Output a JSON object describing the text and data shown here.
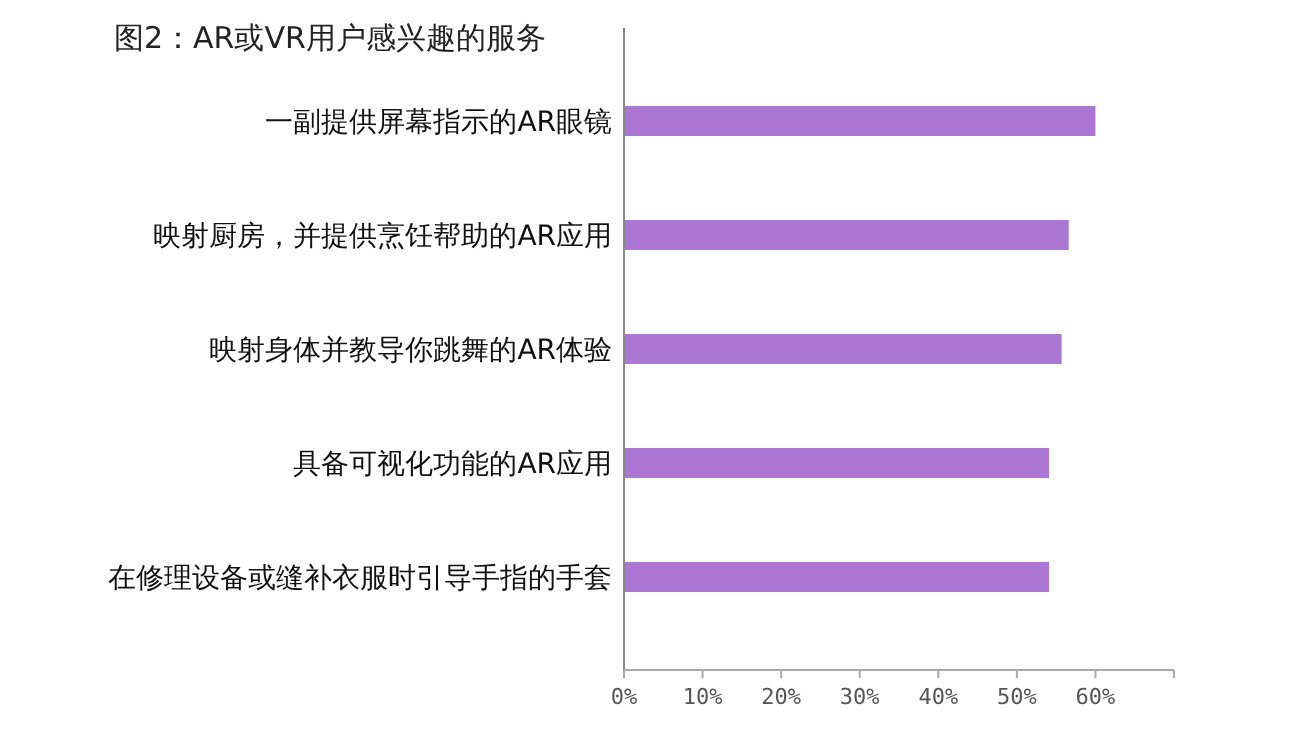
{
  "chart_data": {
    "type": "bar",
    "orientation": "horizontal",
    "title": "图2：AR或VR用户感兴趣的服务",
    "categories": [
      "一副提供屏幕指示的AR眼镜",
      "映射厨房，并提供烹饪帮助的AR应用",
      "映射身体并教导你跳舞的AR体验",
      "具备可视化功能的AR应用",
      "在修理设备或缝补衣服时引导手指的手套"
    ],
    "values": [
      60,
      56.6,
      55.7,
      54.1,
      54.1
    ],
    "color": "#ab77d3",
    "xlim": [
      0,
      70
    ],
    "xticks": [
      {
        "value": 0,
        "label": "0%"
      },
      {
        "value": 10,
        "label": "10%"
      },
      {
        "value": 20,
        "label": "20%"
      },
      {
        "value": 30,
        "label": "30%"
      },
      {
        "value": 40,
        "label": "40%"
      },
      {
        "value": 50,
        "label": "50%"
      },
      {
        "value": 60,
        "label": "60%"
      },
      {
        "value": 70,
        "label": null
      }
    ],
    "grid": false
  }
}
